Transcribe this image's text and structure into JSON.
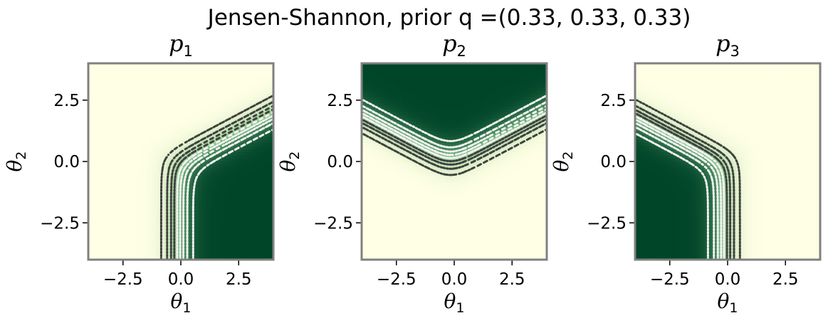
{
  "figure": {
    "suptitle": "Jensen-Shannon, prior q =(0.33, 0.33, 0.33)"
  },
  "colors": {
    "cmap_low": "#ffffe5",
    "cmap_mid": "#8ecb8c",
    "cmap_high": "#004529",
    "contour_dark": "#404040",
    "contour_light": "#f2f2f2",
    "frame": "#808080"
  },
  "chart_data": [
    {
      "type": "heatmap",
      "title": "p",
      "title_subscript": "1",
      "xlabel": "θ",
      "xlabel_subscript": "1",
      "ylabel": "θ",
      "ylabel_subscript": "2",
      "xlim": [
        -4,
        4
      ],
      "ylim": [
        -4,
        4
      ],
      "xticks": [
        -2.5,
        0.0,
        2.5
      ],
      "xtick_labels": [
        "−2.5",
        "0.0",
        "2.5"
      ],
      "yticks": [
        -2.5,
        0.0,
        2.5
      ],
      "ytick_labels": [
        "−2.5",
        "0.0",
        "2.5"
      ],
      "colormap": "YlGn",
      "contour_levels": [
        0.1,
        0.2,
        0.3,
        0.4,
        0.5,
        0.6,
        0.7,
        0.8,
        0.9
      ],
      "contour_style": "dotted",
      "grid": false
    },
    {
      "type": "heatmap",
      "title": "p",
      "title_subscript": "2",
      "xlabel": "θ",
      "xlabel_subscript": "1",
      "ylabel": "θ",
      "ylabel_subscript": "2",
      "xlim": [
        -4,
        4
      ],
      "ylim": [
        -4,
        4
      ],
      "xticks": [
        -2.5,
        0.0,
        2.5
      ],
      "xtick_labels": [
        "−2.5",
        "0.0",
        "2.5"
      ],
      "yticks": [
        -2.5,
        0.0,
        2.5
      ],
      "ytick_labels": [
        "−2.5",
        "0.0",
        "2.5"
      ],
      "colormap": "YlGn",
      "contour_levels": [
        0.1,
        0.2,
        0.3,
        0.4,
        0.5,
        0.6,
        0.7,
        0.8,
        0.9
      ],
      "contour_style": "dotted",
      "grid": false
    },
    {
      "type": "heatmap",
      "title": "p",
      "title_subscript": "3",
      "xlabel": "θ",
      "xlabel_subscript": "1",
      "ylabel": "θ",
      "ylabel_subscript": "2",
      "xlim": [
        -4,
        4
      ],
      "ylim": [
        -4,
        4
      ],
      "xticks": [
        -2.5,
        0.0,
        2.5
      ],
      "xtick_labels": [
        "−2.5",
        "0.0",
        "2.5"
      ],
      "yticks": [
        -2.5,
        0.0,
        2.5
      ],
      "ytick_labels": [
        "−2.5",
        "0.0",
        "2.5"
      ],
      "colormap": "YlGn",
      "contour_levels": [
        0.1,
        0.2,
        0.3,
        0.4,
        0.5,
        0.6,
        0.7,
        0.8,
        0.9
      ],
      "contour_style": "dotted",
      "grid": false
    }
  ]
}
